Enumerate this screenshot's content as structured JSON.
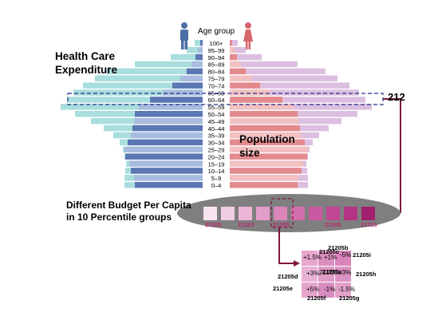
{
  "pyramid": {
    "header": "Age group",
    "age_groups": [
      "100+",
      "95–99",
      "90–94",
      "85–89",
      "80–84",
      "75–79",
      "70–74",
      "65–69",
      "60–64",
      "55–59",
      "50–54",
      "45–49",
      "40–44",
      "35–39",
      "30–34",
      "25–29",
      "20–24",
      "15–19",
      "10–14",
      "5–9",
      "0–4"
    ],
    "male_icon": "male-person-icon",
    "female_icon": "female-person-icon",
    "colors": {
      "male": "#5b78b4",
      "male_light": "#a9bcdf",
      "female": "#e38a8d",
      "female_light": "#f2c0c1",
      "expenditure_left": "#a8dedd",
      "expenditure_right": "#dcbfe0"
    }
  },
  "labels": {
    "health_care_line1": "Health Care",
    "health_care_line2": "Expenditure",
    "population_line1": "Population",
    "population_line2": "size",
    "highlight_value": "212",
    "budget_line1": "Different Budget Per Capita",
    "budget_line2": "in 10 Percentile  groups"
  },
  "percentile_groups": {
    "codes": [
      "21201",
      "21203",
      "21205",
      "21208",
      "21210"
    ],
    "colors": [
      "#f6e3ef",
      "#f1cde3",
      "#ebb5d6",
      "#e39fc9",
      "#dc86bb",
      "#d46fae",
      "#cb59a1",
      "#c14593",
      "#b53385",
      "#a31f6f"
    ]
  },
  "sub_cells": {
    "labels": {
      "c": "21205c",
      "b": "21205b",
      "i": "21205i",
      "d": "21205d",
      "a": "21205a",
      "h": "21205h",
      "e": "21205e",
      "f": "21205f",
      "g": "21205g"
    },
    "values": {
      "c": "+1.5%",
      "b": "+1%",
      "i": "-5%",
      "d": "+3%",
      "a": "-3%",
      "f": "+5%",
      "f2": "-1%",
      "g": "-1.5%"
    },
    "colors": [
      "#e7a6cc",
      "#dc8ebe",
      "#d985bb",
      "#e9b2d4",
      "#e09bc6",
      "#dc92c2",
      "#e4a4cb",
      "#d98cbf",
      "#e2a0c9"
    ]
  },
  "annotation_colors": {
    "arrow": "#7d1640",
    "highlight_band": "#23318c",
    "percentile_panel": "#7f7f7f"
  }
}
